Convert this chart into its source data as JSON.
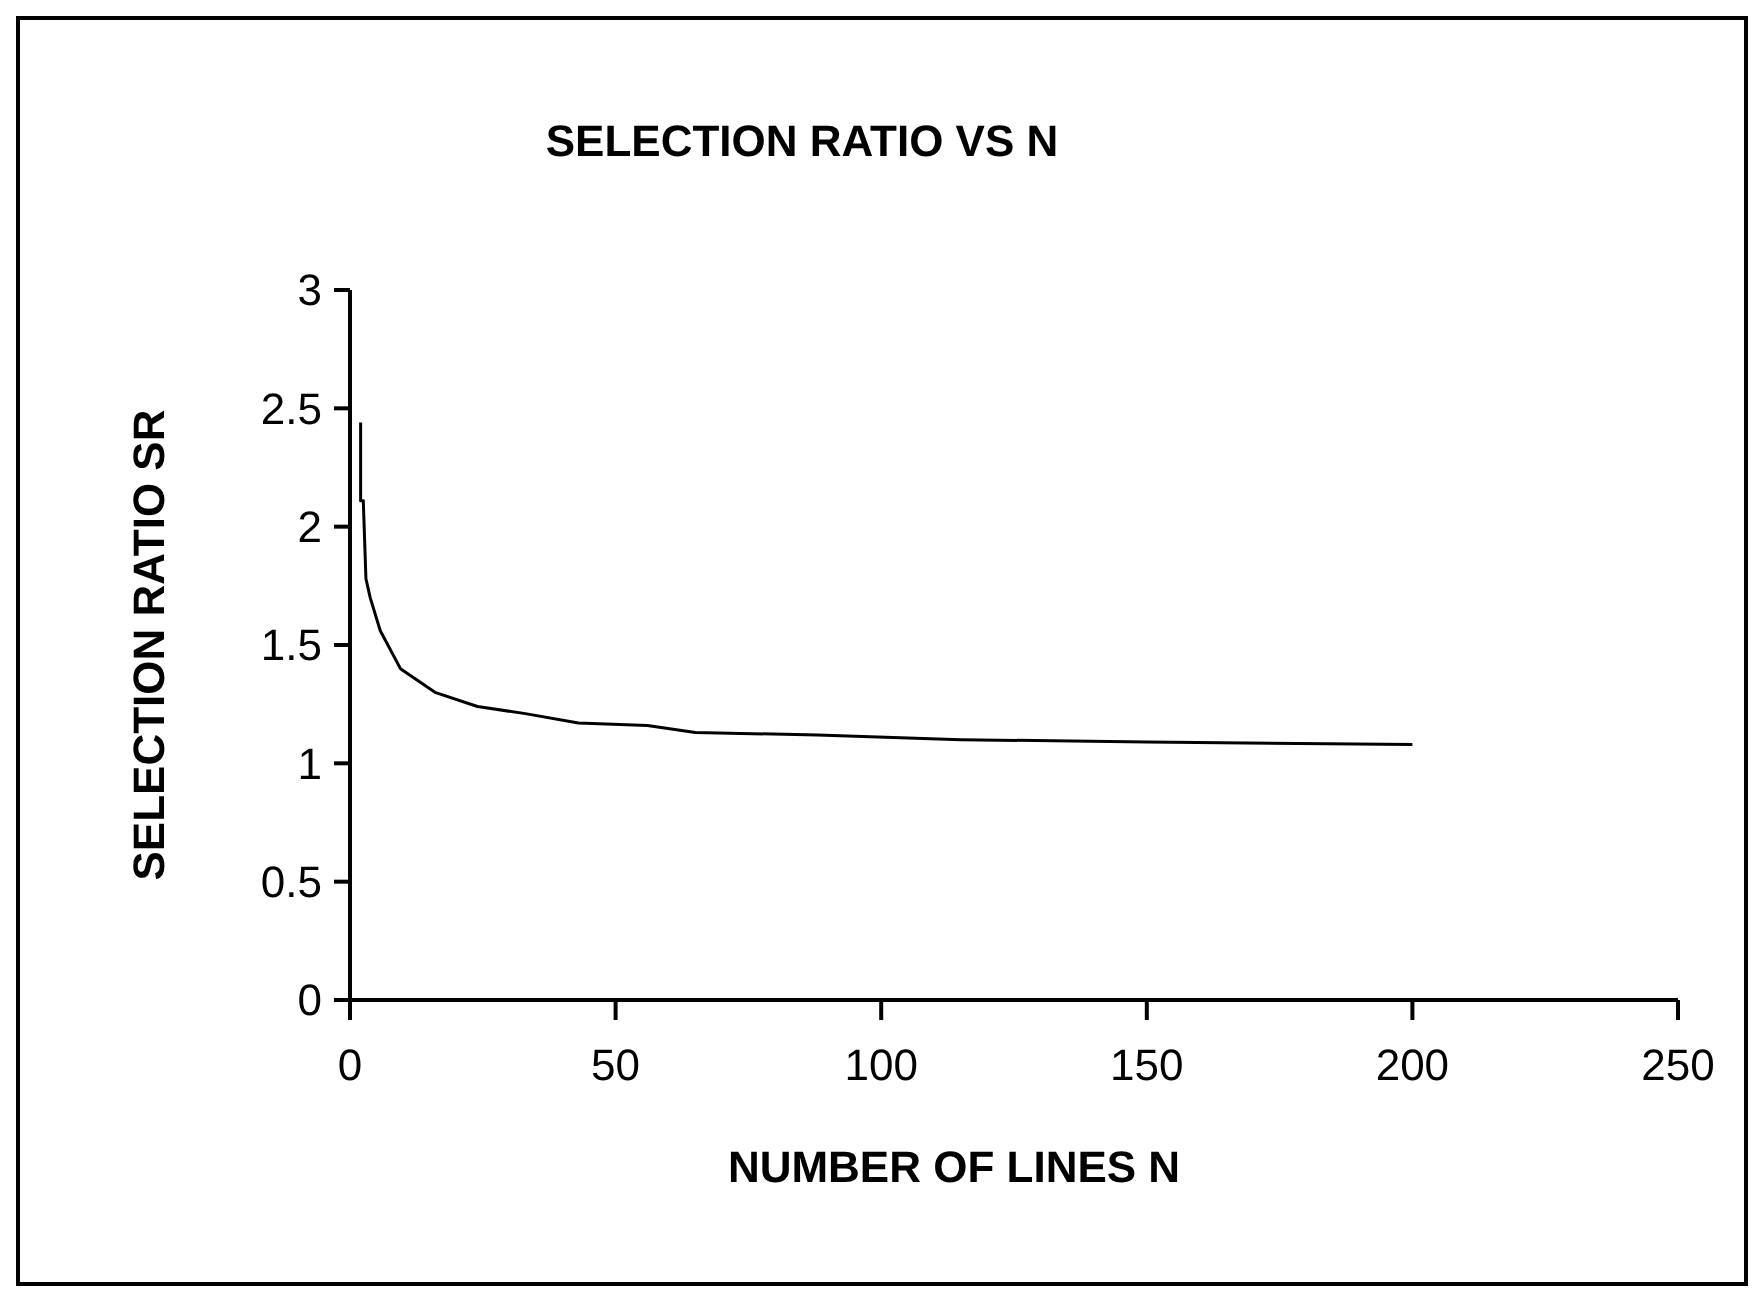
{
  "chart_data": {
    "type": "line",
    "title": "SELECTION RATIO VS N",
    "xlabel": "NUMBER OF LINES N",
    "ylabel": "SELECTION RATIO SR",
    "series": [
      {
        "color": "#000000",
        "x": [
          2,
          2,
          2.5,
          3,
          3.8,
          5.7,
          9.5,
          16,
          24,
          33,
          43,
          56,
          65,
          88,
          115,
          150,
          200
        ],
        "values": [
          2.44,
          2.11,
          2.11,
          1.78,
          1.7,
          1.56,
          1.4,
          1.3,
          1.24,
          1.21,
          1.17,
          1.16,
          1.13,
          1.12,
          1.1,
          1.09,
          1.08
        ]
      }
    ],
    "xlim": [
      0,
      250
    ],
    "xticks": [
      0,
      50,
      100,
      150,
      200,
      250
    ],
    "ylim": [
      0,
      3
    ],
    "yticks": [
      0,
      0.5,
      1,
      1.5,
      2,
      2.5,
      3
    ],
    "marker": "none",
    "line_style": "solid"
  }
}
